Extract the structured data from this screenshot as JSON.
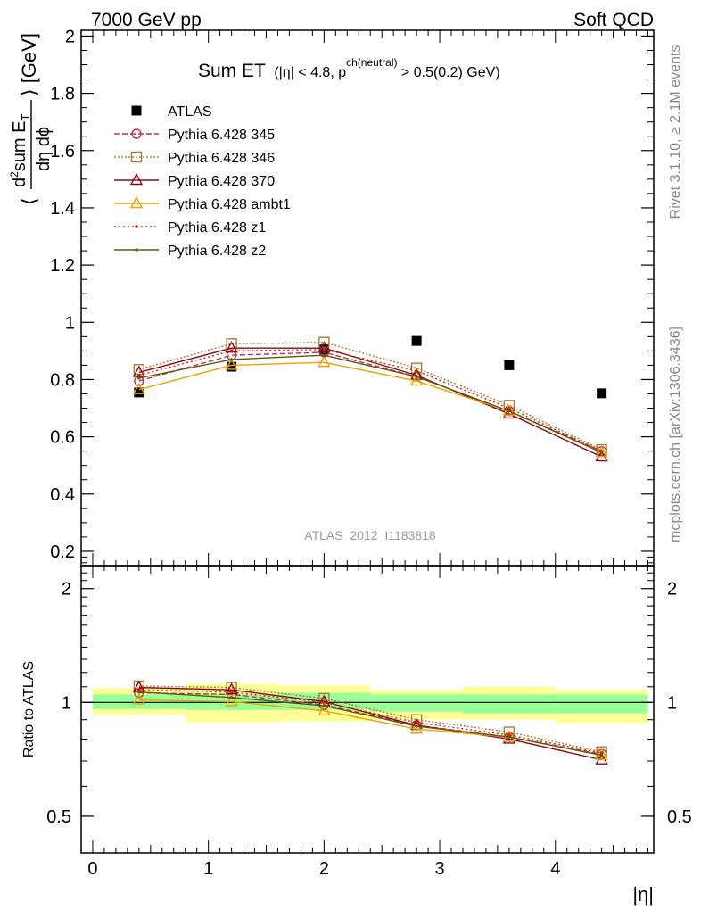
{
  "header": {
    "left": "7000 GeV pp",
    "right": "Soft QCD"
  },
  "side_labels": {
    "rivet": "Rivet 3.1.10, ≥ 2.1M events",
    "mcplots": "mcplots.cern.ch [arXiv:1306.3436]"
  },
  "watermark": "ATLAS_2012_I1183818",
  "plot_title": {
    "main": "Sum ET",
    "cond_a": "(|η| < 4.8, p",
    "cond_sup": "ch(neutral)",
    "cond_b": " > 0.5(0.2) GeV)"
  },
  "y_label_main": {
    "lead": "⟨",
    "num_d": "d",
    "num_sup": "2",
    "num_rest": "sum E",
    "num_sub": "T",
    "den": "dη dϕ",
    "tail": "⟩ [GeV]"
  },
  "chart_data": [
    {
      "type": "scatter",
      "panel": "main",
      "x_label": "|η|",
      "xlim": [
        -0.1,
        4.85
      ],
      "ylim": [
        0.15,
        2.02
      ],
      "y_ticks": [
        "0.2",
        "0.4",
        "0.6",
        "0.8",
        "1",
        "1.2",
        "1.4",
        "1.6",
        "1.8",
        "2"
      ],
      "series": [
        {
          "name": "ATLAS",
          "color": "#000000",
          "marker": "square-filled",
          "dash": "none",
          "x": [
            0.4,
            1.2,
            2.0,
            2.8,
            3.6,
            4.4
          ],
          "y": [
            0.755,
            0.845,
            0.905,
            0.935,
            0.85,
            0.752
          ]
        },
        {
          "name": "Pythia 6.428 345",
          "color": "#c0304a",
          "marker": "circle-open",
          "dash": "6,3",
          "x": [
            0.4,
            1.2,
            2.0,
            2.8,
            3.6,
            4.4
          ],
          "y": [
            0.795,
            0.885,
            0.895,
            0.81,
            0.69,
            0.55
          ]
        },
        {
          "name": "Pythia 6.428 346",
          "color": "#a57d3c",
          "marker": "square-open",
          "dash": "2,2",
          "x": [
            0.4,
            1.2,
            2.0,
            2.8,
            3.6,
            4.4
          ],
          "y": [
            0.835,
            0.925,
            0.93,
            0.84,
            0.71,
            0.555
          ]
        },
        {
          "name": "Pythia 6.428 370",
          "color": "#8b0a1a",
          "marker": "triangle-open",
          "dash": "none",
          "x": [
            0.4,
            1.2,
            2.0,
            2.8,
            3.6,
            4.4
          ],
          "y": [
            0.825,
            0.91,
            0.91,
            0.815,
            0.68,
            0.53
          ]
        },
        {
          "name": "Pythia 6.428 ambt1",
          "color": "#f0a000",
          "marker": "triangle-open",
          "dash": "none",
          "x": [
            0.4,
            1.2,
            2.0,
            2.8,
            3.6,
            4.4
          ],
          "y": [
            0.765,
            0.85,
            0.86,
            0.795,
            0.69,
            0.545
          ]
        },
        {
          "name": "Pythia 6.428 z1",
          "color": "#d02010",
          "marker": "dot",
          "dash": "2,3",
          "x": [
            0.4,
            1.2,
            2.0,
            2.8,
            3.6,
            4.4
          ],
          "y": [
            0.815,
            0.9,
            0.905,
            0.83,
            0.7,
            0.55
          ]
        },
        {
          "name": "Pythia 6.428 z2",
          "color": "#5b5a10",
          "marker": "dot",
          "dash": "none",
          "x": [
            0.4,
            1.2,
            2.0,
            2.8,
            3.6,
            4.4
          ],
          "y": [
            0.805,
            0.87,
            0.885,
            0.81,
            0.69,
            0.545
          ]
        }
      ]
    },
    {
      "type": "scatter",
      "panel": "ratio",
      "ylabel": "Ratio to ATLAS",
      "y_scale": "log",
      "xlim": [
        -0.1,
        4.85
      ],
      "ylim": [
        0.4,
        2.3
      ],
      "x_ticks": [
        "0",
        "1",
        "2",
        "3",
        "4"
      ],
      "y_ticks": [
        "0.5",
        "1",
        "2"
      ],
      "bands": {
        "edges": [
          0.0,
          0.8,
          1.6,
          2.4,
          3.2,
          4.0,
          4.8
        ],
        "outer_color": "#ffff99",
        "inner_color": "#99ff99",
        "outer_lo": [
          0.925,
          0.885,
          0.89,
          0.9,
          0.9,
          0.88
        ],
        "outer_hi": [
          1.09,
          1.12,
          1.11,
          1.08,
          1.1,
          1.08
        ],
        "inner_lo": [
          0.96,
          0.955,
          0.955,
          0.945,
          0.935,
          0.935
        ],
        "inner_hi": [
          1.05,
          1.05,
          1.06,
          1.05,
          1.05,
          1.05
        ]
      },
      "series": [
        {
          "name": "Pythia 6.428 345",
          "color": "#c0304a",
          "marker": "circle-open",
          "dash": "6,3",
          "x": [
            0.4,
            1.2,
            2.0,
            2.8,
            3.6,
            4.4
          ],
          "y": [
            1.06,
            1.05,
            0.985,
            0.87,
            0.81,
            0.73
          ]
        },
        {
          "name": "Pythia 6.428 346",
          "color": "#a57d3c",
          "marker": "square-open",
          "dash": "2,2",
          "x": [
            0.4,
            1.2,
            2.0,
            2.8,
            3.6,
            4.4
          ],
          "y": [
            1.105,
            1.095,
            1.025,
            0.9,
            0.835,
            0.74
          ]
        },
        {
          "name": "Pythia 6.428 370",
          "color": "#8b0a1a",
          "marker": "triangle-open",
          "dash": "none",
          "x": [
            0.4,
            1.2,
            2.0,
            2.8,
            3.6,
            4.4
          ],
          "y": [
            1.095,
            1.08,
            1.005,
            0.87,
            0.8,
            0.705
          ]
        },
        {
          "name": "Pythia 6.428 ambt1",
          "color": "#f0a000",
          "marker": "triangle-open",
          "dash": "none",
          "x": [
            0.4,
            1.2,
            2.0,
            2.8,
            3.6,
            4.4
          ],
          "y": [
            1.015,
            1.005,
            0.95,
            0.85,
            0.81,
            0.725
          ]
        },
        {
          "name": "Pythia 6.428 z1",
          "color": "#d02010",
          "marker": "dot",
          "dash": "2,3",
          "x": [
            0.4,
            1.2,
            2.0,
            2.8,
            3.6,
            4.4
          ],
          "y": [
            1.08,
            1.065,
            1.0,
            0.885,
            0.82,
            0.735
          ]
        },
        {
          "name": "Pythia 6.428 z2",
          "color": "#5b5a10",
          "marker": "dot",
          "dash": "none",
          "x": [
            0.4,
            1.2,
            2.0,
            2.8,
            3.6,
            4.4
          ],
          "y": [
            1.065,
            1.03,
            0.98,
            0.865,
            0.81,
            0.725
          ]
        }
      ]
    }
  ]
}
